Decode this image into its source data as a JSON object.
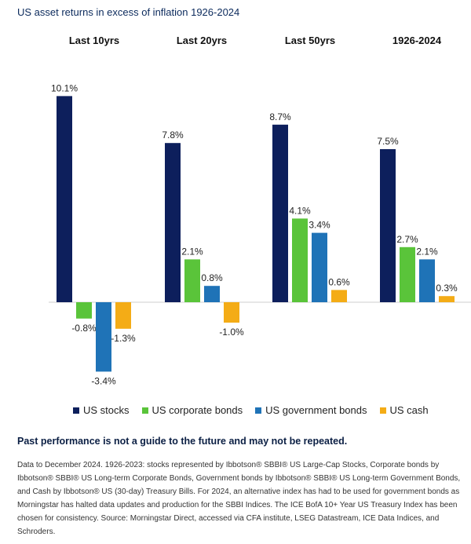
{
  "chart_data": {
    "type": "bar",
    "title": "US asset returns in excess of inflation 1926-2024",
    "categories": [
      "Last 10yrs",
      "Last 20yrs",
      "Last 50yrs",
      "1926-2024"
    ],
    "series": [
      {
        "name": "US stocks",
        "color": "#0d1f5c",
        "values": [
          10.1,
          7.8,
          8.7,
          7.5
        ],
        "labels": [
          "10.1%",
          "7.8%",
          "8.7%",
          "7.5%"
        ]
      },
      {
        "name": "US corporate bonds",
        "color": "#5ac43a",
        "values": [
          -0.8,
          2.1,
          4.1,
          2.7
        ],
        "labels": [
          "-0.8%",
          "2.1%",
          "4.1%",
          "2.7%"
        ]
      },
      {
        "name": "US government bonds",
        "color": "#1f73b7",
        "values": [
          -3.4,
          0.8,
          3.4,
          2.1
        ],
        "labels": [
          "-3.4%",
          "0.8%",
          "3.4%",
          "2.1%"
        ]
      },
      {
        "name": "US cash",
        "color": "#f4ac16",
        "values": [
          -1.3,
          -1.0,
          0.6,
          0.3
        ],
        "labels": [
          "-1.3%",
          "-1.0%",
          "0.6%",
          "0.3%"
        ]
      }
    ],
    "legend_position": "bottom",
    "grid": false
  },
  "disclaimer": "Past performance is not a guide to the future and may not be repeated.",
  "footnote": "Data to December 2024. 1926-2023: stocks represented by Ibbotson® SBBI® US Large-Cap Stocks, Corporate bonds by Ibbotson® SBBI® US Long-term Corporate Bonds, Government bonds by Ibbotson® SBBI® US Long-term Government Bonds, and Cash by Ibbotson® US (30-day) Treasury Bills. For 2024, an alternative index has had to be used for government bonds as Morningstar has halted data updates and production for the SBBI Indices. The ICE BofA 10+ Year US Treasury Index has been chosen for consistency. Source: Morningstar Direct, accessed via CFA institute, LSEG Datastream, ICE Data Indices, and Schroders."
}
